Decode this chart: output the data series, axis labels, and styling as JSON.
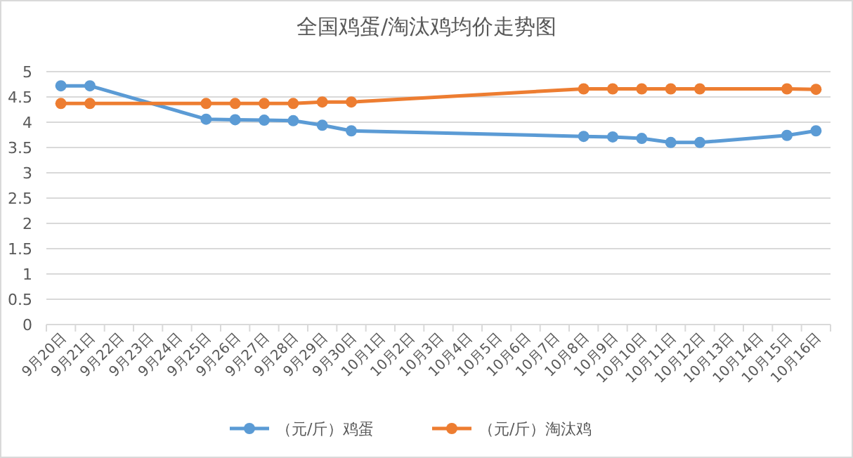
{
  "chart_data": {
    "type": "line",
    "title": "全国鸡蛋/淘汰鸡均价走势图",
    "categories": [
      "9月20日",
      "9月21日",
      "9月22日",
      "9月23日",
      "9月24日",
      "9月25日",
      "9月26日",
      "9月27日",
      "9月28日",
      "9月29日",
      "9月30日",
      "10月1日",
      "10月2日",
      "10月3日",
      "10月4日",
      "10月5日",
      "10月6日",
      "10月7日",
      "10月8日",
      "10月9日",
      "10月10日",
      "10月11日",
      "10月12日",
      "10月13日",
      "10月14日",
      "10月15日",
      "10月16日"
    ],
    "series": [
      {
        "name": "（元/斤）鸡蛋",
        "color": "#5b9bd5",
        "values": [
          4.72,
          4.72,
          null,
          null,
          null,
          4.06,
          4.05,
          4.04,
          4.03,
          3.94,
          3.83,
          null,
          null,
          null,
          null,
          null,
          null,
          null,
          3.72,
          3.71,
          3.68,
          3.6,
          3.6,
          null,
          null,
          3.74,
          3.83
        ]
      },
      {
        "name": "（元/斤）淘汰鸡",
        "color": "#ed7d31",
        "values": [
          4.37,
          4.37,
          null,
          null,
          null,
          4.37,
          4.37,
          4.37,
          4.37,
          4.4,
          4.4,
          null,
          null,
          null,
          null,
          null,
          null,
          null,
          4.66,
          4.66,
          4.66,
          4.66,
          4.66,
          null,
          null,
          4.66,
          4.65
        ]
      }
    ],
    "ylim": [
      0,
      5
    ],
    "yticks": [
      0,
      0.5,
      1,
      1.5,
      2,
      2.5,
      3,
      3.5,
      4,
      4.5,
      5
    ],
    "grid": "y",
    "legend": "bottom",
    "marker": "circle",
    "line_style": "solid"
  }
}
